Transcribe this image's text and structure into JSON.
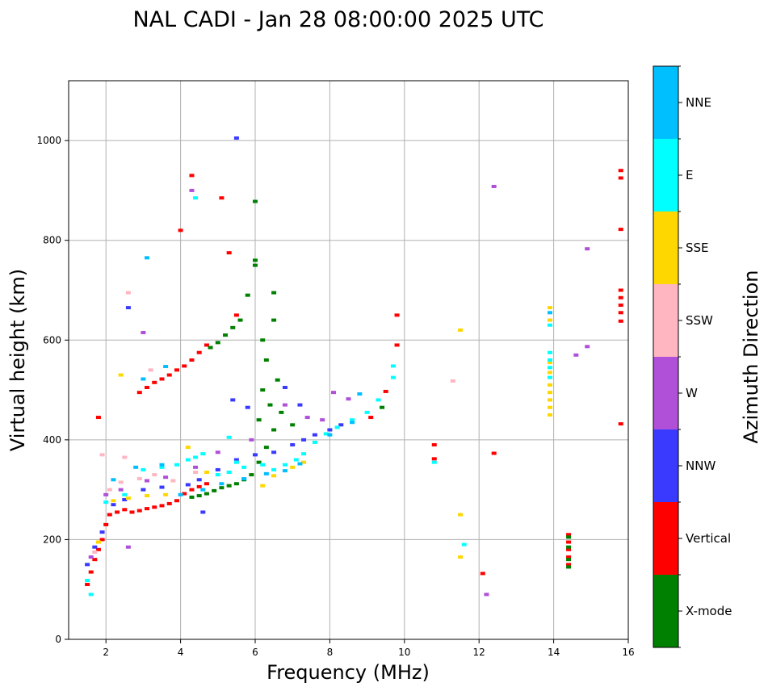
{
  "chart_data": {
    "type": "scatter",
    "title": "NAL CADI - Jan 28 08:00:00 2025 UTC",
    "xlabel": "Frequency (MHz)",
    "ylabel": "Virtual height (km)",
    "xlim": [
      1,
      16
    ],
    "ylim": [
      0,
      1120
    ],
    "xticks": [
      2,
      4,
      6,
      8,
      10,
      12,
      14,
      16
    ],
    "yticks": [
      0,
      200,
      400,
      600,
      800,
      1000
    ],
    "grid": true,
    "colorbar": {
      "label": "Azimuth Direction",
      "categories": [
        {
          "name": "X-mode",
          "color": "#008000"
        },
        {
          "name": "Vertical",
          "color": "#ff0000"
        },
        {
          "name": "NNW",
          "color": "#3a3aff"
        },
        {
          "name": "W",
          "color": "#b050d8"
        },
        {
          "name": "SSW",
          "color": "#ffb6c1"
        },
        {
          "name": "SSE",
          "color": "#ffd700"
        },
        {
          "name": "E",
          "color": "#00ffff"
        },
        {
          "name": "NNE",
          "color": "#00bfff"
        }
      ]
    },
    "series": [
      {
        "name": "Vertical",
        "points": [
          [
            1.5,
            110
          ],
          [
            1.6,
            135
          ],
          [
            1.7,
            160
          ],
          [
            1.8,
            180
          ],
          [
            1.9,
            200
          ],
          [
            2.0,
            230
          ],
          [
            2.1,
            250
          ],
          [
            2.3,
            255
          ],
          [
            2.5,
            260
          ],
          [
            2.7,
            255
          ],
          [
            2.9,
            258
          ],
          [
            3.1,
            262
          ],
          [
            3.3,
            265
          ],
          [
            3.5,
            268
          ],
          [
            3.7,
            272
          ],
          [
            3.9,
            278
          ],
          [
            4.1,
            292
          ],
          [
            4.3,
            300
          ],
          [
            4.5,
            306
          ],
          [
            4.7,
            312
          ],
          [
            2.9,
            495
          ],
          [
            3.1,
            505
          ],
          [
            3.3,
            515
          ],
          [
            3.5,
            522
          ],
          [
            3.7,
            530
          ],
          [
            3.9,
            540
          ],
          [
            4.1,
            548
          ],
          [
            4.3,
            560
          ],
          [
            4.5,
            575
          ],
          [
            4.7,
            590
          ],
          [
            1.8,
            445
          ],
          [
            4.0,
            820
          ],
          [
            4.3,
            930
          ],
          [
            5.1,
            885
          ],
          [
            5.3,
            775
          ],
          [
            5.5,
            650
          ],
          [
            10.8,
            390
          ],
          [
            10.8,
            362
          ],
          [
            12.4,
            373
          ],
          [
            12.1,
            132
          ],
          [
            15.8,
            940
          ],
          [
            15.8,
            925
          ],
          [
            15.8,
            822
          ],
          [
            15.8,
            700
          ],
          [
            15.8,
            685
          ],
          [
            15.8,
            670
          ],
          [
            15.8,
            655
          ],
          [
            15.8,
            638
          ],
          [
            15.8,
            432
          ],
          [
            14.4,
            210
          ],
          [
            14.4,
            195
          ],
          [
            14.4,
            180
          ],
          [
            14.4,
            165
          ],
          [
            14.4,
            150
          ],
          [
            9.5,
            497
          ],
          [
            9.1,
            445
          ],
          [
            9.8,
            650
          ],
          [
            9.8,
            590
          ]
        ]
      },
      {
        "name": "X-mode",
        "points": [
          [
            4.3,
            285
          ],
          [
            4.5,
            288
          ],
          [
            4.7,
            292
          ],
          [
            4.9,
            298
          ],
          [
            5.1,
            304
          ],
          [
            5.3,
            308
          ],
          [
            5.5,
            312
          ],
          [
            5.7,
            320
          ],
          [
            5.9,
            330
          ],
          [
            6.1,
            355
          ],
          [
            6.3,
            385
          ],
          [
            6.5,
            420
          ],
          [
            4.8,
            585
          ],
          [
            5.0,
            595
          ],
          [
            5.2,
            610
          ],
          [
            5.4,
            625
          ],
          [
            5.6,
            640
          ],
          [
            5.8,
            690
          ],
          [
            6.0,
            750
          ],
          [
            6.0,
            760
          ],
          [
            6.2,
            600
          ],
          [
            6.5,
            640
          ],
          [
            6.5,
            695
          ],
          [
            6.2,
            500
          ],
          [
            6.4,
            470
          ],
          [
            6.7,
            455
          ],
          [
            7.0,
            430
          ],
          [
            6.1,
            440
          ],
          [
            6.3,
            560
          ],
          [
            6.6,
            520
          ],
          [
            9.4,
            465
          ],
          [
            14.4,
            205
          ],
          [
            14.4,
            185
          ],
          [
            14.4,
            160
          ],
          [
            14.4,
            145
          ],
          [
            6.0,
            878
          ]
        ]
      },
      {
        "name": "NNW",
        "points": [
          [
            1.5,
            150
          ],
          [
            1.7,
            185
          ],
          [
            1.9,
            215
          ],
          [
            2.2,
            270
          ],
          [
            2.5,
            280
          ],
          [
            3.0,
            300
          ],
          [
            3.5,
            305
          ],
          [
            4.2,
            310
          ],
          [
            4.5,
            320
          ],
          [
            5.0,
            340
          ],
          [
            5.5,
            360
          ],
          [
            6.0,
            370
          ],
          [
            6.5,
            375
          ],
          [
            7.0,
            390
          ],
          [
            7.3,
            400
          ],
          [
            7.6,
            410
          ],
          [
            8.0,
            420
          ],
          [
            8.3,
            430
          ],
          [
            5.4,
            480
          ],
          [
            5.8,
            465
          ],
          [
            6.8,
            505
          ],
          [
            7.2,
            470
          ],
          [
            5.5,
            1005
          ],
          [
            4.6,
            255
          ],
          [
            2.6,
            665
          ]
        ]
      },
      {
        "name": "W",
        "points": [
          [
            1.6,
            165
          ],
          [
            2.0,
            290
          ],
          [
            2.4,
            300
          ],
          [
            3.1,
            318
          ],
          [
            3.6,
            325
          ],
          [
            4.4,
            345
          ],
          [
            5.0,
            375
          ],
          [
            5.9,
            400
          ],
          [
            6.8,
            470
          ],
          [
            7.4,
            445
          ],
          [
            7.8,
            440
          ],
          [
            8.1,
            495
          ],
          [
            8.5,
            482
          ],
          [
            12.4,
            908
          ],
          [
            14.6,
            570
          ],
          [
            14.9,
            783
          ],
          [
            14.9,
            587
          ],
          [
            2.6,
            185
          ],
          [
            3.0,
            615
          ],
          [
            4.3,
            900
          ],
          [
            12.2,
            90
          ]
        ]
      },
      {
        "name": "SSW",
        "points": [
          [
            1.7,
            175
          ],
          [
            2.1,
            300
          ],
          [
            2.4,
            315
          ],
          [
            2.9,
            322
          ],
          [
            3.3,
            330
          ],
          [
            3.8,
            318
          ],
          [
            4.4,
            335
          ],
          [
            5.5,
            355
          ],
          [
            2.5,
            365
          ],
          [
            11.3,
            518
          ],
          [
            2.6,
            695
          ],
          [
            3.2,
            540
          ],
          [
            1.9,
            370
          ]
        ]
      },
      {
        "name": "SSE",
        "points": [
          [
            1.8,
            195
          ],
          [
            2.2,
            278
          ],
          [
            2.6,
            283
          ],
          [
            3.1,
            288
          ],
          [
            3.6,
            290
          ],
          [
            4.2,
            385
          ],
          [
            4.7,
            335
          ],
          [
            6.2,
            308
          ],
          [
            6.5,
            328
          ],
          [
            7.0,
            345
          ],
          [
            7.3,
            355
          ],
          [
            13.9,
            665
          ],
          [
            13.9,
            640
          ],
          [
            13.9,
            555
          ],
          [
            13.9,
            535
          ],
          [
            13.9,
            510
          ],
          [
            13.9,
            495
          ],
          [
            13.9,
            480
          ],
          [
            13.9,
            465
          ],
          [
            13.9,
            450
          ],
          [
            11.5,
            620
          ],
          [
            11.5,
            250
          ],
          [
            11.5,
            165
          ],
          [
            2.4,
            530
          ]
        ]
      },
      {
        "name": "E",
        "points": [
          [
            1.5,
            118
          ],
          [
            1.6,
            90
          ],
          [
            2.0,
            275
          ],
          [
            2.5,
            290
          ],
          [
            3.0,
            340
          ],
          [
            3.5,
            345
          ],
          [
            3.9,
            350
          ],
          [
            4.2,
            360
          ],
          [
            4.4,
            365
          ],
          [
            4.6,
            372
          ],
          [
            5.0,
            330
          ],
          [
            5.3,
            335
          ],
          [
            5.7,
            345
          ],
          [
            6.2,
            350
          ],
          [
            6.5,
            340
          ],
          [
            6.8,
            350
          ],
          [
            7.1,
            360
          ],
          [
            7.3,
            372
          ],
          [
            7.6,
            395
          ],
          [
            7.9,
            412
          ],
          [
            8.2,
            425
          ],
          [
            8.6,
            440
          ],
          [
            9.0,
            455
          ],
          [
            9.3,
            480
          ],
          [
            9.7,
            525
          ],
          [
            9.7,
            548
          ],
          [
            5.3,
            405
          ],
          [
            5.5,
            355
          ],
          [
            13.9,
            630
          ],
          [
            13.9,
            575
          ],
          [
            13.9,
            560
          ],
          [
            13.9,
            545
          ],
          [
            13.9,
            525
          ],
          [
            11.6,
            190
          ],
          [
            10.8,
            355
          ],
          [
            4.4,
            885
          ]
        ]
      },
      {
        "name": "NNE",
        "points": [
          [
            2.2,
            320
          ],
          [
            2.8,
            345
          ],
          [
            3.5,
            350
          ],
          [
            4.0,
            290
          ],
          [
            4.6,
            300
          ],
          [
            5.1,
            312
          ],
          [
            5.7,
            322
          ],
          [
            6.3,
            332
          ],
          [
            6.8,
            338
          ],
          [
            7.2,
            352
          ],
          [
            8.0,
            410
          ],
          [
            8.6,
            435
          ],
          [
            8.8,
            492
          ],
          [
            3.0,
            522
          ],
          [
            3.6,
            547
          ],
          [
            3.1,
            765
          ],
          [
            13.9,
            655
          ]
        ]
      }
    ]
  }
}
